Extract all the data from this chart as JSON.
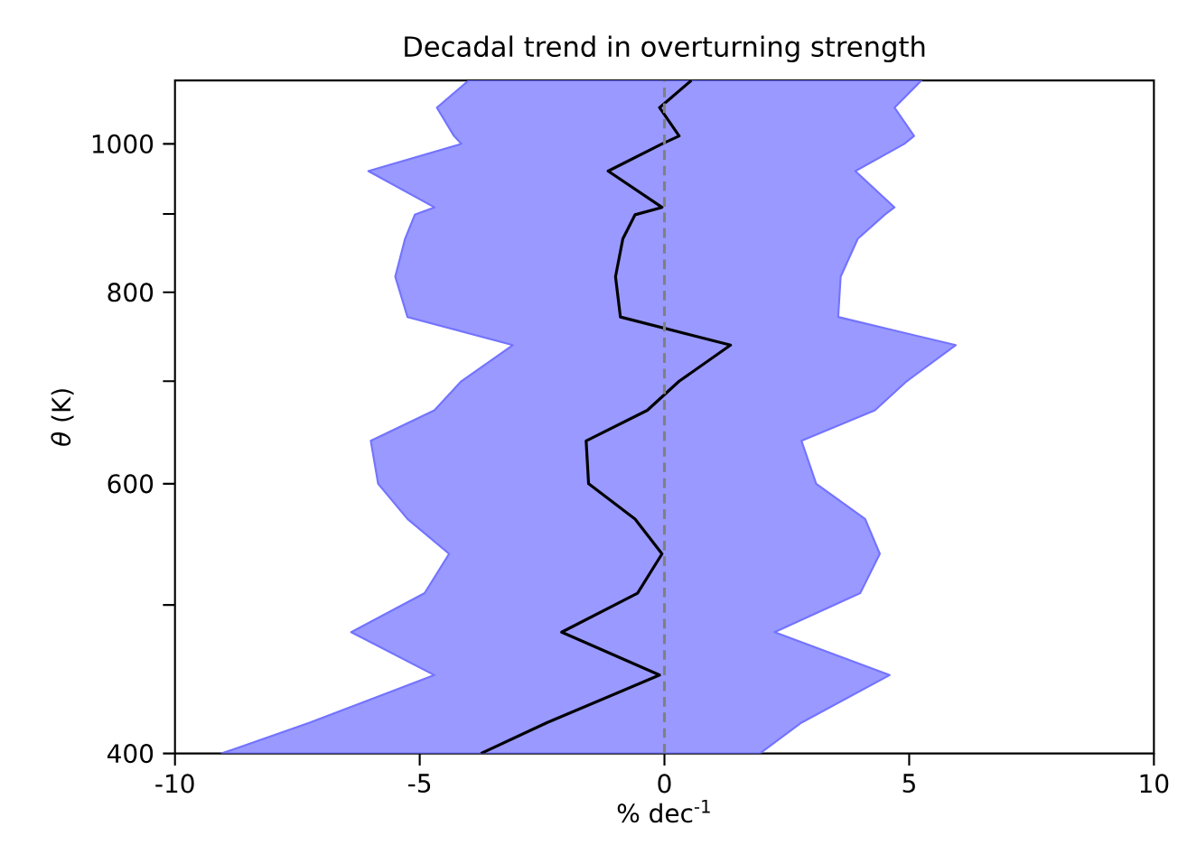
{
  "chart_data": {
    "type": "line",
    "title": "Decadal trend in overturning strength",
    "xlabel": "% dec$^{-1}$",
    "ylabel": "*θ* (K)",
    "orientation": "horizontal",
    "log": "y",
    "xlim": [
      -10,
      10
    ],
    "xticks": [
      -10,
      -5,
      0,
      5,
      10
    ],
    "ylim": [
      400,
      1100
    ],
    "yticks": [
      400,
      {
        "value": 500,
        "label": null
      },
      600,
      {
        "value": 700,
        "label": null
      },
      800,
      {
        "value": 900,
        "label": null
      },
      1000
    ],
    "x": [
      400,
      419,
      450,
      480,
      509,
      540,
      569,
      600,
      640,
      670,
      700,
      739,
      771,
      819,
      867,
      899,
      909,
      960,
      1000,
      1012,
      1056,
      1100
    ],
    "series": [
      {
        "color": "#000000",
        "values": [
          -3.75,
          -2.4,
          -0.1,
          -2.1,
          -0.55,
          -0.05,
          -0.6,
          -1.55,
          -1.6,
          -0.35,
          0.3,
          1.35,
          -0.9,
          -1.0,
          -0.85,
          -0.6,
          -0.05,
          -1.15,
          -0.05,
          0.3,
          -0.1,
          0.55
        ],
        "lower": [
          -9.05,
          -7.25,
          -4.7,
          -6.4,
          -4.9,
          -4.4,
          -5.25,
          -5.85,
          -6.0,
          -4.7,
          -4.15,
          -3.1,
          -5.25,
          -5.5,
          -5.3,
          -5.1,
          -4.7,
          -6.05,
          -4.15,
          -4.3,
          -4.65,
          -4.0
        ],
        "upper": [
          1.95,
          2.8,
          4.6,
          2.25,
          4.0,
          4.4,
          4.1,
          3.1,
          2.8,
          4.3,
          4.95,
          5.95,
          3.55,
          3.6,
          3.95,
          4.5,
          4.7,
          3.9,
          4.9,
          5.1,
          4.7,
          5.25
        ]
      }
    ],
    "ref_lines": [
      {
        "axis": "x",
        "value": 0,
        "color": "#808080",
        "line_style": "dashed"
      }
    ]
  }
}
